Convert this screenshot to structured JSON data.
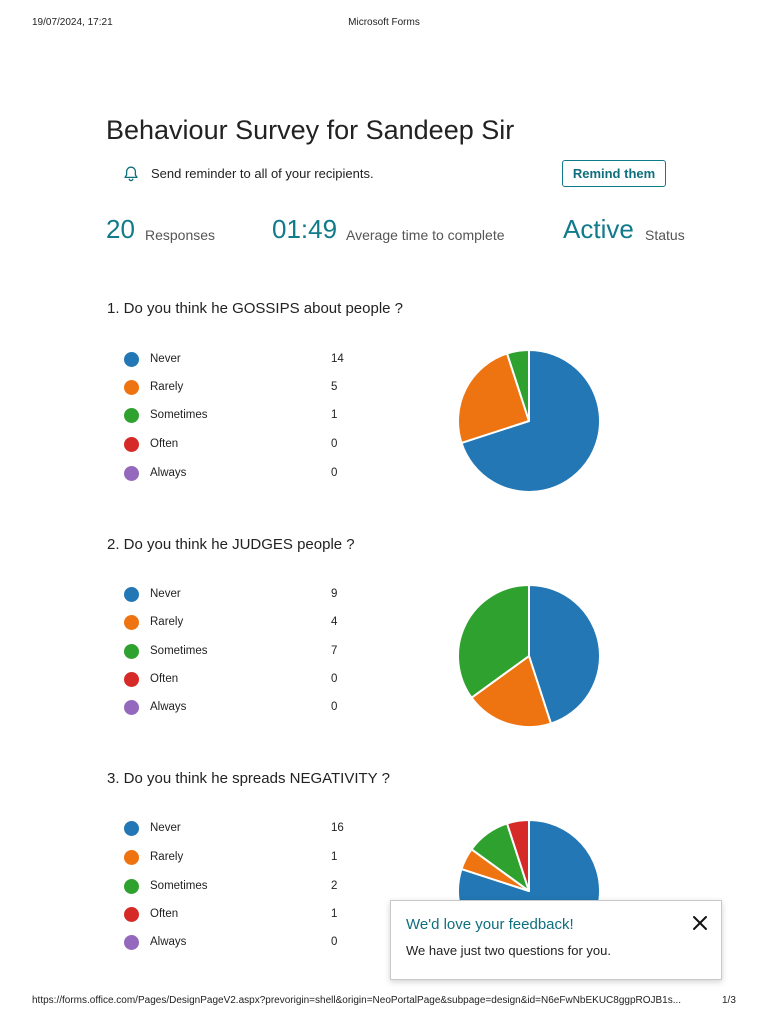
{
  "print_header": {
    "date": "19/07/2024, 17:21",
    "title": "Microsoft Forms"
  },
  "print_footer": {
    "url": "https://forms.office.com/Pages/DesignPageV2.aspx?prevorigin=shell&origin=NeoPortalPage&subpage=design&id=N6eFwNbEKUC8ggpROJB1s...",
    "page": "1/3"
  },
  "form": {
    "title": "Behaviour Survey for Sandeep Sir",
    "reminder_text": "Send reminder to all of your recipients.",
    "remind_button": "Remind them",
    "bell_icon": "bell-icon"
  },
  "stats": {
    "responses_value": "20",
    "responses_label": "Responses",
    "avg_time_value": "01:49",
    "avg_time_label": "Average time to complete",
    "status_value": "Active",
    "status_label": "Status"
  },
  "colors": {
    "accent": "#117a8b",
    "Never": "#2277b4",
    "Rarely": "#ee7411",
    "Sometimes": "#2ea12e",
    "Often": "#d62a28",
    "Always": "#9368bd"
  },
  "questions": [
    {
      "title": "1.  Do you think he GOSSIPS about people ?",
      "options": [
        {
          "label": "Never",
          "count": "14"
        },
        {
          "label": "Rarely",
          "count": "5"
        },
        {
          "label": "Sometimes",
          "count": "1"
        },
        {
          "label": "Often",
          "count": "0"
        },
        {
          "label": "Always",
          "count": "0"
        }
      ]
    },
    {
      "title": "2.  Do you think he JUDGES people ?",
      "options": [
        {
          "label": "Never",
          "count": "9"
        },
        {
          "label": "Rarely",
          "count": "4"
        },
        {
          "label": "Sometimes",
          "count": "7"
        },
        {
          "label": "Often",
          "count": "0"
        },
        {
          "label": "Always",
          "count": "0"
        }
      ]
    },
    {
      "title": "3.  Do you think he spreads NEGATIVITY ?",
      "options": [
        {
          "label": "Never",
          "count": "16"
        },
        {
          "label": "Rarely",
          "count": "1"
        },
        {
          "label": "Sometimes",
          "count": "2"
        },
        {
          "label": "Often",
          "count": "1"
        },
        {
          "label": "Always",
          "count": "0"
        }
      ]
    }
  ],
  "chart_data": [
    {
      "type": "pie",
      "categories": [
        "Never",
        "Rarely",
        "Sometimes",
        "Often",
        "Always"
      ],
      "values": [
        14,
        5,
        1,
        0,
        0
      ]
    },
    {
      "type": "pie",
      "categories": [
        "Never",
        "Rarely",
        "Sometimes",
        "Often",
        "Always"
      ],
      "values": [
        9,
        4,
        7,
        0,
        0
      ]
    },
    {
      "type": "pie",
      "categories": [
        "Never",
        "Rarely",
        "Sometimes",
        "Often",
        "Always"
      ],
      "values": [
        16,
        1,
        2,
        1,
        0
      ]
    }
  ],
  "feedback_popup": {
    "title": "We'd love your feedback!",
    "text": "We have just two questions for you.",
    "close_icon": "close-icon"
  }
}
